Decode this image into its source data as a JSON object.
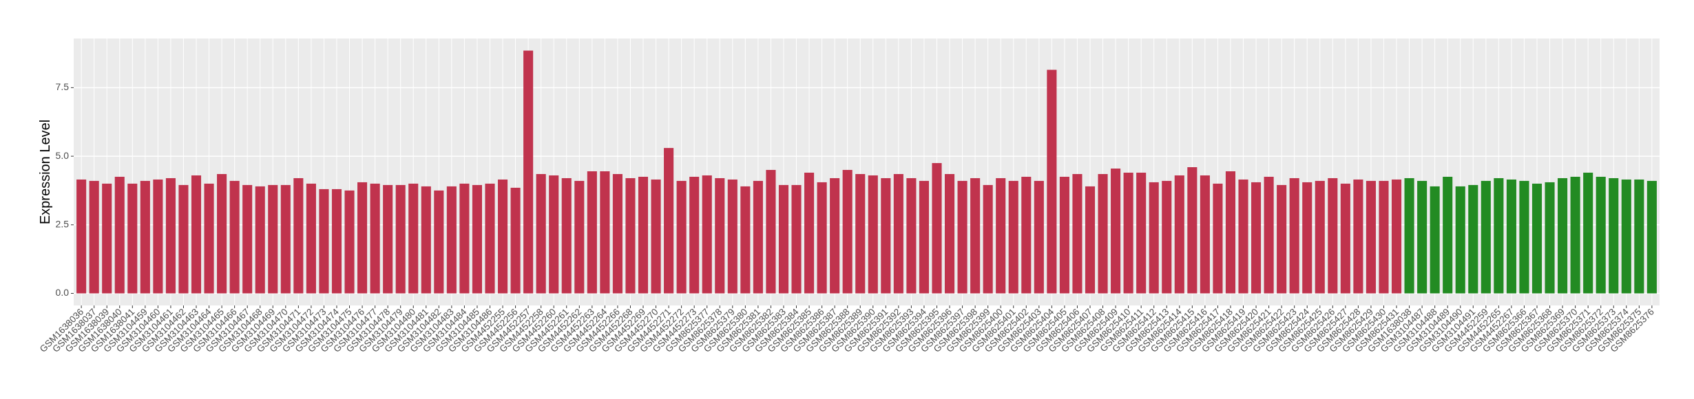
{
  "chart_data": {
    "type": "bar",
    "y_label": "Expression Level",
    "categories": [
      "GSM1638036",
      "GSM1638037",
      "GSM1638039",
      "GSM1638040",
      "GSM1638041",
      "GSM3104459",
      "GSM3104460",
      "GSM3104461",
      "GSM3104462",
      "GSM3104463",
      "GSM3104464",
      "GSM3104465",
      "GSM3104466",
      "GSM3104467",
      "GSM3104468",
      "GSM3104469",
      "GSM3104470",
      "GSM3104471",
      "GSM3104472",
      "GSM3104473",
      "GSM3104474",
      "GSM3104475",
      "GSM3104476",
      "GSM3104477",
      "GSM3104478",
      "GSM3104479",
      "GSM3104480",
      "GSM3104481",
      "GSM3104482",
      "GSM3104483",
      "GSM3104484",
      "GSM3104485",
      "GSM3104486",
      "GSM4452255",
      "GSM4452256",
      "GSM4452257",
      "GSM4452258",
      "GSM4452260",
      "GSM4452261",
      "GSM4452262",
      "GSM4452263",
      "GSM4452264",
      "GSM4452266",
      "GSM4452268",
      "GSM4452269",
      "GSM4452270",
      "GSM4452271",
      "GSM4452272",
      "GSM4452273",
      "GSM8625377",
      "GSM8625378",
      "GSM8625379",
      "GSM8625380",
      "GSM8625381",
      "GSM8625382",
      "GSM8625383",
      "GSM8625384",
      "GSM8625385",
      "GSM8625386",
      "GSM8625387",
      "GSM8625388",
      "GSM8625389",
      "GSM8625390",
      "GSM8625391",
      "GSM8625392",
      "GSM8625393",
      "GSM8625394",
      "GSM8625395",
      "GSM8625396",
      "GSM8625397",
      "GSM8625398",
      "GSM8625399",
      "GSM8625400",
      "GSM8625401",
      "GSM8625402",
      "GSM8625403",
      "GSM8625404",
      "GSM8625405",
      "GSM8625406",
      "GSM8625407",
      "GSM8625408",
      "GSM8625409",
      "GSM8625410",
      "GSM8625411",
      "GSM8625412",
      "GSM8625413",
      "GSM8625414",
      "GSM8625415",
      "GSM8625416",
      "GSM8625417",
      "GSM8625418",
      "GSM8625419",
      "GSM8625420",
      "GSM8625421",
      "GSM8625422",
      "GSM8625423",
      "GSM8625424",
      "GSM8625425",
      "GSM8625426",
      "GSM8625427",
      "GSM8625428",
      "GSM8625429",
      "GSM8625430",
      "GSM8625431",
      "GSM1638038",
      "GSM3104487",
      "GSM3104488",
      "GSM3104489",
      "GSM3104490",
      "GSM3104491",
      "GSM4452259",
      "GSM4452265",
      "GSM4452267",
      "GSM8625366",
      "GSM8625367",
      "GSM8625368",
      "GSM8625369",
      "GSM8625370",
      "GSM8625371",
      "GSM8625372",
      "GSM8625373",
      "GSM8625374",
      "GSM8625375",
      "GSM8625376"
    ],
    "values": [
      4.15,
      4.1,
      4.0,
      4.25,
      4.0,
      4.1,
      4.15,
      4.2,
      3.95,
      4.3,
      4.0,
      4.35,
      4.1,
      3.95,
      3.9,
      3.95,
      3.95,
      4.2,
      4.0,
      3.8,
      3.8,
      3.75,
      4.05,
      4.0,
      3.95,
      3.95,
      4.0,
      3.9,
      3.75,
      3.9,
      4.0,
      3.95,
      4.0,
      4.15,
      3.85,
      8.85,
      4.35,
      4.3,
      4.2,
      4.1,
      4.45,
      4.45,
      4.35,
      4.2,
      4.25,
      4.15,
      5.3,
      4.1,
      4.25,
      4.3,
      4.2,
      4.15,
      3.9,
      4.1,
      4.5,
      3.95,
      3.95,
      4.4,
      4.05,
      4.2,
      4.5,
      4.35,
      4.3,
      4.2,
      4.35,
      4.2,
      4.1,
      4.75,
      4.35,
      4.1,
      4.2,
      3.95,
      4.2,
      4.1,
      4.25,
      4.1,
      8.15,
      4.25,
      4.35,
      3.9,
      4.35,
      4.55,
      4.4,
      4.4,
      4.05,
      4.1,
      4.3,
      4.6,
      4.3,
      4.0,
      4.45,
      4.15,
      4.05,
      4.25,
      3.95,
      4.2,
      4.05,
      4.1,
      4.2,
      4.0,
      4.15,
      4.1,
      4.1,
      4.15,
      4.2,
      4.1,
      3.9,
      4.25,
      3.9,
      3.95,
      4.1,
      4.2,
      4.15,
      4.1,
      4.0,
      4.05,
      4.2,
      4.25,
      4.4,
      4.25,
      4.2,
      4.15,
      4.15,
      4.1
    ],
    "colors": [
      "#c0334d",
      "#c0334d",
      "#c0334d",
      "#c0334d",
      "#c0334d",
      "#c0334d",
      "#c0334d",
      "#c0334d",
      "#c0334d",
      "#c0334d",
      "#c0334d",
      "#c0334d",
      "#c0334d",
      "#c0334d",
      "#c0334d",
      "#c0334d",
      "#c0334d",
      "#c0334d",
      "#c0334d",
      "#c0334d",
      "#c0334d",
      "#c0334d",
      "#c0334d",
      "#c0334d",
      "#c0334d",
      "#c0334d",
      "#c0334d",
      "#c0334d",
      "#c0334d",
      "#c0334d",
      "#c0334d",
      "#c0334d",
      "#c0334d",
      "#c0334d",
      "#c0334d",
      "#c0334d",
      "#c0334d",
      "#c0334d",
      "#c0334d",
      "#c0334d",
      "#c0334d",
      "#c0334d",
      "#c0334d",
      "#c0334d",
      "#c0334d",
      "#c0334d",
      "#c0334d",
      "#c0334d",
      "#c0334d",
      "#c0334d",
      "#c0334d",
      "#c0334d",
      "#c0334d",
      "#c0334d",
      "#c0334d",
      "#c0334d",
      "#c0334d",
      "#c0334d",
      "#c0334d",
      "#c0334d",
      "#c0334d",
      "#c0334d",
      "#c0334d",
      "#c0334d",
      "#c0334d",
      "#c0334d",
      "#c0334d",
      "#c0334d",
      "#c0334d",
      "#c0334d",
      "#c0334d",
      "#c0334d",
      "#c0334d",
      "#c0334d",
      "#c0334d",
      "#c0334d",
      "#c0334d",
      "#c0334d",
      "#c0334d",
      "#c0334d",
      "#c0334d",
      "#c0334d",
      "#c0334d",
      "#c0334d",
      "#c0334d",
      "#c0334d",
      "#c0334d",
      "#c0334d",
      "#c0334d",
      "#c0334d",
      "#c0334d",
      "#c0334d",
      "#c0334d",
      "#c0334d",
      "#c0334d",
      "#c0334d",
      "#c0334d",
      "#c0334d",
      "#c0334d",
      "#c0334d",
      "#c0334d",
      "#c0334d",
      "#c0334d",
      "#c0334d",
      "#228b22",
      "#228b22",
      "#228b22",
      "#228b22",
      "#228b22",
      "#228b22",
      "#228b22",
      "#228b22",
      "#228b22",
      "#228b22",
      "#228b22",
      "#228b22",
      "#228b22",
      "#228b22",
      "#228b22",
      "#228b22",
      "#228b22",
      "#228b22",
      "#228b22",
      "#228b22"
    ],
    "ylim": [
      -0.44,
      9.29
    ],
    "yticks": [
      {
        "value": 0,
        "label": "0.0"
      },
      2.5,
      {
        "value": 5,
        "label": "5.0"
      },
      7.5
    ],
    "grid": true
  }
}
